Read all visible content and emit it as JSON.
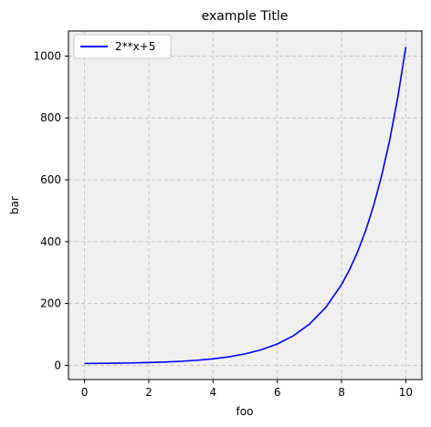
{
  "chart_data": {
    "type": "line",
    "title": "example Title",
    "xlabel": "foo",
    "ylabel": "bar",
    "xlim": [
      -0.5,
      10.5
    ],
    "ylim": [
      -46,
      1081
    ],
    "x_ticks": [
      0,
      2,
      4,
      6,
      8,
      10
    ],
    "y_ticks": [
      0,
      200,
      400,
      600,
      800,
      1000
    ],
    "grid": true,
    "grid_style": "dashed",
    "background": "#f0f0f0",
    "legend_position": "top-left",
    "series": [
      {
        "name": "2**x+5",
        "color": "#0000ff",
        "x": [
          0,
          0.5,
          1,
          1.5,
          2,
          2.5,
          3,
          3.5,
          4,
          4.5,
          5,
          5.5,
          6,
          6.5,
          7,
          7.5,
          8,
          8.25,
          8.5,
          8.75,
          9,
          9.25,
          9.5,
          9.75,
          10
        ],
        "y": [
          6,
          6.41,
          7,
          7.83,
          9,
          10.66,
          13,
          16.31,
          21,
          27.63,
          37,
          50.25,
          69,
          95.51,
          133,
          186.02,
          261,
          309.39,
          367.04,
          435.56,
          517,
          613.85,
          729.08,
          866.12,
          1029
        ]
      }
    ]
  }
}
